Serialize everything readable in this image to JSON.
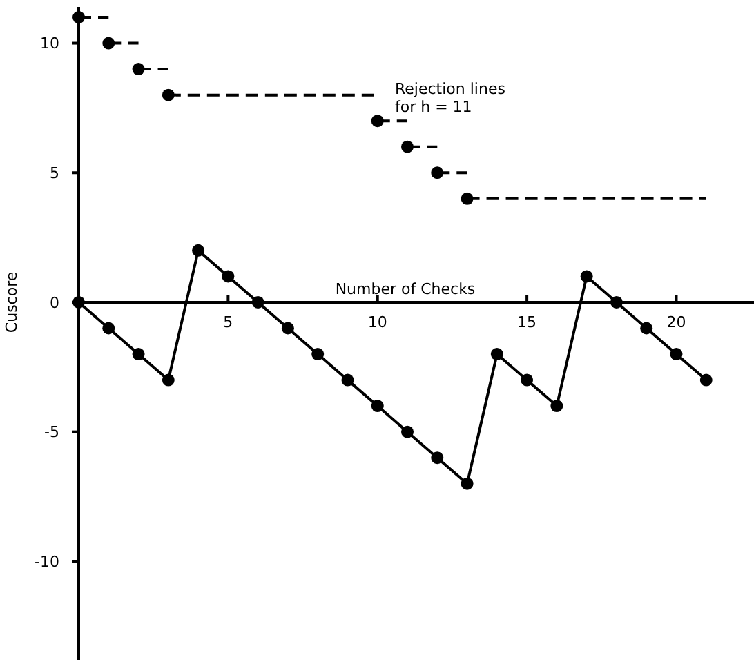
{
  "chart_data": {
    "type": "line",
    "ylabel": "Cuscore",
    "xlabel": "Number of Checks",
    "annotations": [
      "Rejection lines\nfor h = 11"
    ],
    "xlim": [
      0,
      22.6
    ],
    "ylim": [
      -13.8,
      11.4
    ],
    "xticks": [
      5,
      10,
      15,
      20
    ],
    "yticks": [
      -10,
      -5,
      0,
      5,
      10
    ],
    "marker": "circle",
    "grid": false,
    "series": [
      {
        "color": "#000000",
        "line_style": "solid",
        "x": [
          0,
          1,
          2,
          3,
          4,
          5,
          6,
          7,
          8,
          9,
          10,
          11,
          12,
          13,
          14,
          15,
          16,
          17,
          18,
          19,
          20,
          21
        ],
        "values": [
          0,
          -1,
          -2,
          -3,
          2,
          1,
          0,
          -1,
          -2,
          -3,
          -4,
          -5,
          -6,
          -7,
          -2,
          -3,
          -4,
          1,
          0,
          -1,
          -2,
          -3
        ]
      },
      {
        "color": "#000000",
        "line_style": "dashed",
        "x": [
          0,
          1
        ],
        "values": [
          11,
          11
        ]
      },
      {
        "color": "#000000",
        "line_style": "dashed",
        "x": [
          1,
          2
        ],
        "values": [
          10,
          10
        ]
      },
      {
        "color": "#000000",
        "line_style": "dashed",
        "x": [
          2,
          3
        ],
        "values": [
          9,
          9
        ]
      },
      {
        "color": "#000000",
        "line_style": "dashed",
        "x": [
          3,
          10
        ],
        "values": [
          8,
          8
        ]
      },
      {
        "color": "#000000",
        "line_style": "dashed",
        "x": [
          10,
          11
        ],
        "values": [
          7,
          7
        ]
      },
      {
        "color": "#000000",
        "line_style": "dashed",
        "x": [
          11,
          12
        ],
        "values": [
          6,
          6
        ]
      },
      {
        "color": "#000000",
        "line_style": "dashed",
        "x": [
          12,
          13
        ],
        "values": [
          5,
          5
        ]
      },
      {
        "color": "#000000",
        "line_style": "dashed",
        "x": [
          13,
          21
        ],
        "values": [
          4,
          4
        ]
      }
    ]
  }
}
